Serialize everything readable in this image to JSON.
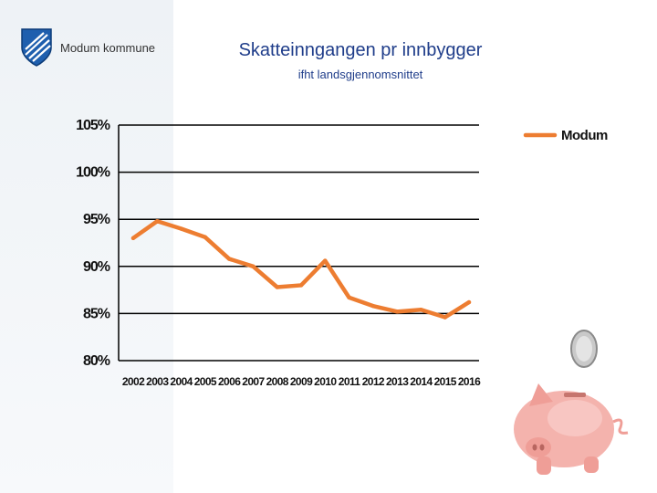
{
  "logo": {
    "text": "Modum kommune"
  },
  "header": {
    "title": "Skatteinngangen pr innbygger",
    "subtitle": "ifht landsgjennomsnittet"
  },
  "chart_data": {
    "type": "line",
    "title": "Skatteinngangen pr innbygger",
    "subtitle": "ifht landsgjennomsnittet",
    "xlabel": "",
    "ylabel": "",
    "x": [
      "2002",
      "2003",
      "2004",
      "2005",
      "2006",
      "2007",
      "2008",
      "2009",
      "2010",
      "2011",
      "2012",
      "2013",
      "2014",
      "2015",
      "2016"
    ],
    "series": [
      {
        "name": "Modum",
        "color": "#ed7d31",
        "values": [
          93.0,
          94.8,
          94.0,
          93.1,
          90.8,
          90.0,
          87.8,
          88.0,
          90.6,
          86.7,
          85.8,
          85.2,
          85.4,
          84.6,
          86.2
        ]
      }
    ],
    "ylim": [
      80,
      105
    ],
    "yticks": [
      80,
      85,
      90,
      95,
      100,
      105
    ],
    "ytick_labels": [
      "80%",
      "85%",
      "90%",
      "95%",
      "100%",
      "105%"
    ],
    "grid": true,
    "legend_position": "top-right"
  }
}
